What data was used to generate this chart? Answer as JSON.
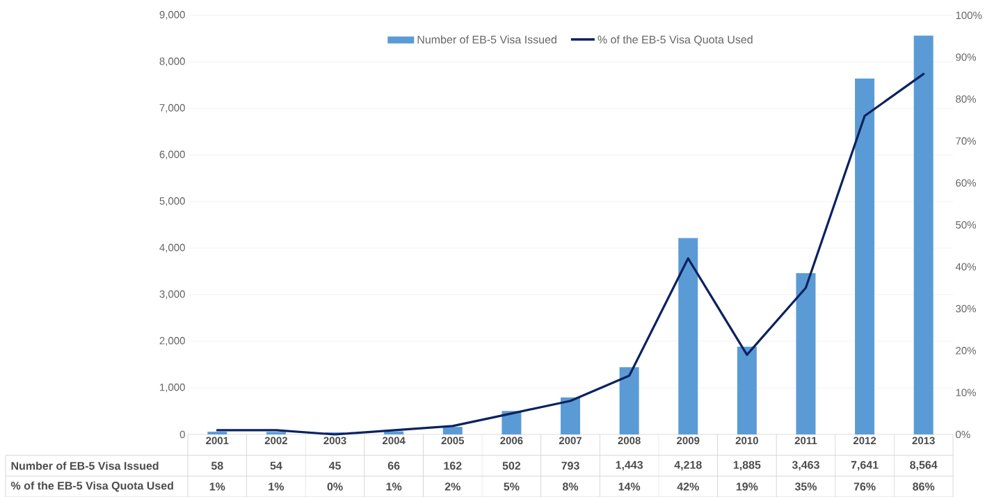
{
  "chart_data": {
    "type": "bar",
    "categories": [
      "2001",
      "2002",
      "2003",
      "2004",
      "2005",
      "2006",
      "2007",
      "2008",
      "2009",
      "2010",
      "2011",
      "2012",
      "2013"
    ],
    "series": [
      {
        "name": "Number of EB-5 Visa Issued",
        "color": "#5b9bd5",
        "values": [
          58,
          54,
          45,
          66,
          162,
          502,
          793,
          1443,
          4218,
          1885,
          3463,
          7641,
          8564
        ],
        "value_labels": [
          "58",
          "54",
          "45",
          "66",
          "162",
          "502",
          "793",
          "1,443",
          "4,218",
          "1,885",
          "3,463",
          "7,641",
          "8,564"
        ]
      },
      {
        "name": "% of the EB-5 Visa Quota Used",
        "type": "line",
        "axis": "y2",
        "color": "#0b2160",
        "values": [
          1,
          1,
          0,
          1,
          2,
          5,
          8,
          14,
          42,
          19,
          35,
          76,
          86
        ],
        "value_labels": [
          "1%",
          "1%",
          "0%",
          "1%",
          "2%",
          "5%",
          "8%",
          "14%",
          "42%",
          "19%",
          "35%",
          "76%",
          "86%"
        ]
      }
    ],
    "ylim": [
      0,
      9000
    ],
    "yticks": [
      {
        "value": 0,
        "label": "0"
      },
      {
        "value": 1000,
        "label": "1,000"
      },
      {
        "value": 2000,
        "label": "2,000"
      },
      {
        "value": 3000,
        "label": "3,000"
      },
      {
        "value": 4000,
        "label": "4,000"
      },
      {
        "value": 5000,
        "label": "5,000"
      },
      {
        "value": 6000,
        "label": "6,000"
      },
      {
        "value": 7000,
        "label": "7,000"
      },
      {
        "value": 8000,
        "label": "8,000"
      },
      {
        "value": 9000,
        "label": "9,000"
      }
    ],
    "y2lim": [
      0,
      100
    ],
    "y2ticks": [
      {
        "value": 0,
        "label": "0%"
      },
      {
        "value": 10,
        "label": "10%"
      },
      {
        "value": 20,
        "label": "20%"
      },
      {
        "value": 30,
        "label": "30%"
      },
      {
        "value": 40,
        "label": "40%"
      },
      {
        "value": 50,
        "label": "50%"
      },
      {
        "value": 60,
        "label": "60%"
      },
      {
        "value": 70,
        "label": "70%"
      },
      {
        "value": 80,
        "label": "80%"
      },
      {
        "value": 90,
        "label": "90%"
      },
      {
        "value": 100,
        "label": "100%"
      }
    ],
    "grid": "y",
    "legend": "top"
  }
}
